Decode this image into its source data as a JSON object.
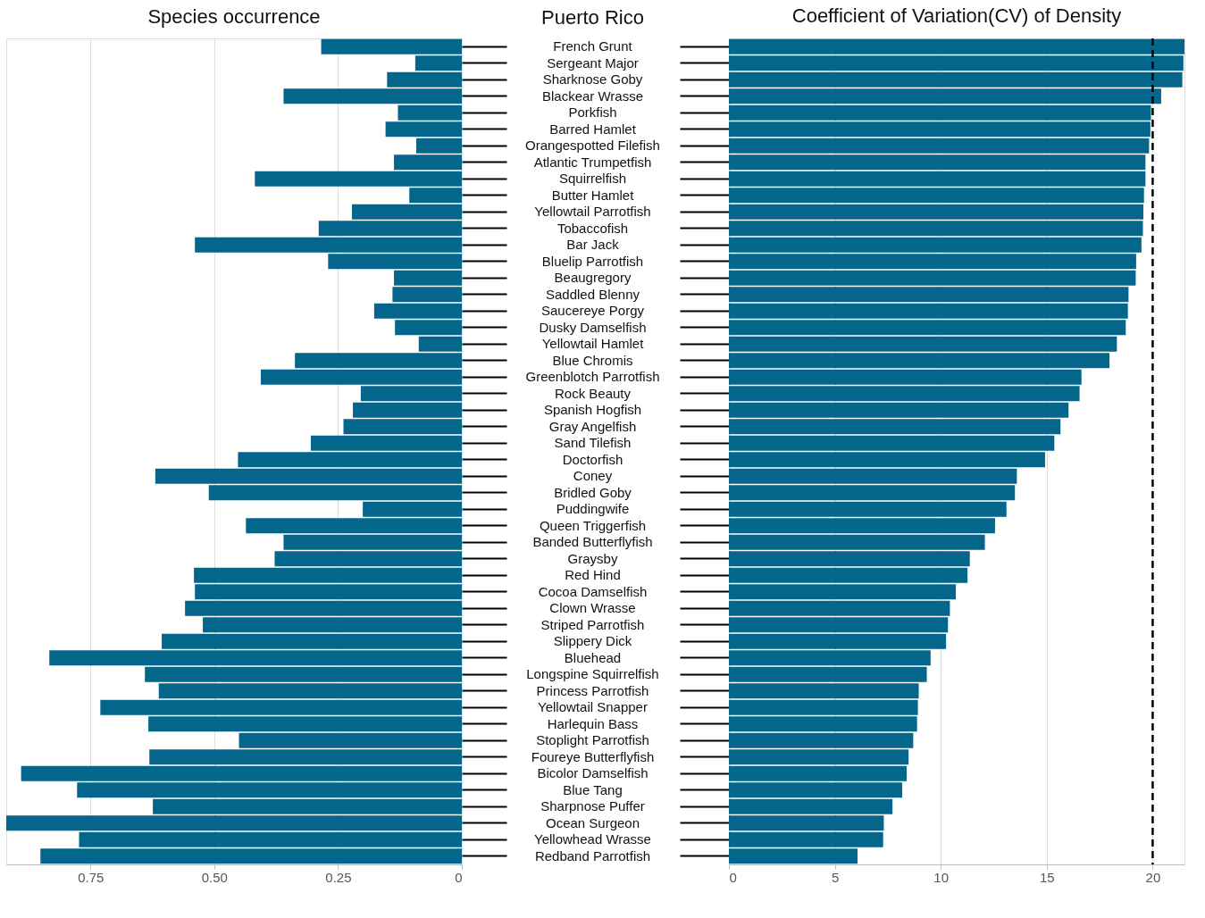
{
  "chart_data": [
    {
      "type": "bar",
      "orientation": "horizontal",
      "title": "Species occurrence",
      "tick_labels": "x",
      "grid": "x",
      "categories": [
        null,
        null,
        null,
        null,
        null,
        null,
        null,
        null,
        null,
        null,
        null,
        null,
        null,
        null,
        null,
        null,
        null,
        null,
        null,
        null,
        null,
        null,
        null,
        null,
        null,
        null,
        null,
        null,
        null,
        null,
        null,
        null,
        null,
        null,
        null,
        null,
        null,
        null,
        null,
        null,
        null,
        null,
        null,
        null,
        null,
        null,
        null,
        null,
        null,
        null
      ],
      "series": [
        {
          "color": "#03668a",
          "values": [
            0.284,
            0.094,
            0.151,
            0.36,
            0.129,
            0.154,
            0.092,
            0.137,
            0.418,
            0.106,
            0.222,
            0.289,
            0.539,
            0.27,
            0.137,
            0.14,
            0.177,
            0.135,
            0.087,
            0.337,
            0.406,
            0.204,
            0.22,
            0.239,
            0.305,
            0.452,
            0.619,
            0.511,
            0.2,
            0.436,
            0.36,
            0.378,
            0.541,
            0.539,
            0.559,
            0.523,
            0.606,
            0.833,
            0.64,
            0.612,
            0.73,
            0.633,
            0.45,
            0.631,
            0.89,
            0.777,
            0.624,
            0.92,
            0.773,
            0.851
          ]
        }
      ],
      "xlim": [
        0.92,
        0
      ],
      "xticks": [
        0.75,
        {
          "value": 0.5,
          "label": "0.50"
        },
        0.25,
        0
      ]
    },
    {
      "type": "bar",
      "orientation": "horizontal",
      "title": "Coefficient of Variation(CV) of Density",
      "ylabel": "Puerto Rico",
      "grid": "x",
      "categories": [
        "French Grunt",
        "Sergeant Major",
        "Sharknose Goby",
        "Blackear Wrasse",
        "Porkfish",
        "Barred Hamlet",
        "Orangespotted Filefish",
        "Atlantic Trumpetfish",
        "Squirrelfish",
        "Butter Hamlet",
        "Yellowtail Parrotfish",
        "Tobaccofish",
        "Bar Jack",
        "Bluelip Parrotfish",
        "Beaugregory",
        "Saddled Blenny",
        "Saucereye Porgy",
        "Dusky Damselfish",
        "Yellowtail Hamlet",
        "Blue Chromis",
        "Greenblotch Parrotfish",
        "Rock Beauty",
        "Spanish Hogfish",
        "Gray Angelfish",
        "Sand Tilefish",
        "Doctorfish",
        "Coney",
        "Bridled Goby",
        "Puddingwife",
        "Queen Triggerfish",
        "Banded Butterflyfish",
        "Graysby",
        "Red Hind",
        "Cocoa Damselfish",
        "Clown Wrasse",
        "Striped Parrotfish",
        "Slippery Dick",
        "Bluehead",
        "Longspine Squirrelfish",
        "Princess Parrotfish",
        "Yellowtail Snapper",
        "Harlequin Bass",
        "Stoplight Parrotfish",
        "Foureye Butterflyfish",
        "Bicolor Damselfish",
        "Blue Tang",
        "Sharpnose Puffer",
        "Ocean Surgeon",
        "Yellowhead Wrasse",
        "Redband Parrotfish"
      ],
      "series": [
        {
          "color": "#03668a",
          "values": [
            21.5,
            21.45,
            21.4,
            20.4,
            19.92,
            19.89,
            19.83,
            19.66,
            19.66,
            19.59,
            19.56,
            19.54,
            19.47,
            19.22,
            19.2,
            18.86,
            18.83,
            18.73,
            18.31,
            17.96,
            16.64,
            16.55,
            16.03,
            15.65,
            15.36,
            14.92,
            13.59,
            13.5,
            13.1,
            12.56,
            12.08,
            11.37,
            11.26,
            10.71,
            10.43,
            10.34,
            10.25,
            9.52,
            9.34,
            8.96,
            8.92,
            8.88,
            8.7,
            8.48,
            8.39,
            8.18,
            7.72,
            7.31,
            7.28,
            6.07
          ]
        }
      ],
      "xlim": [
        0,
        21.5
      ],
      "xticks": [
        0,
        5,
        10,
        15,
        20
      ],
      "ref_lines": [
        {
          "axis": "x",
          "value": 20,
          "color": "#000000",
          "line_style": "dashed"
        }
      ]
    }
  ]
}
